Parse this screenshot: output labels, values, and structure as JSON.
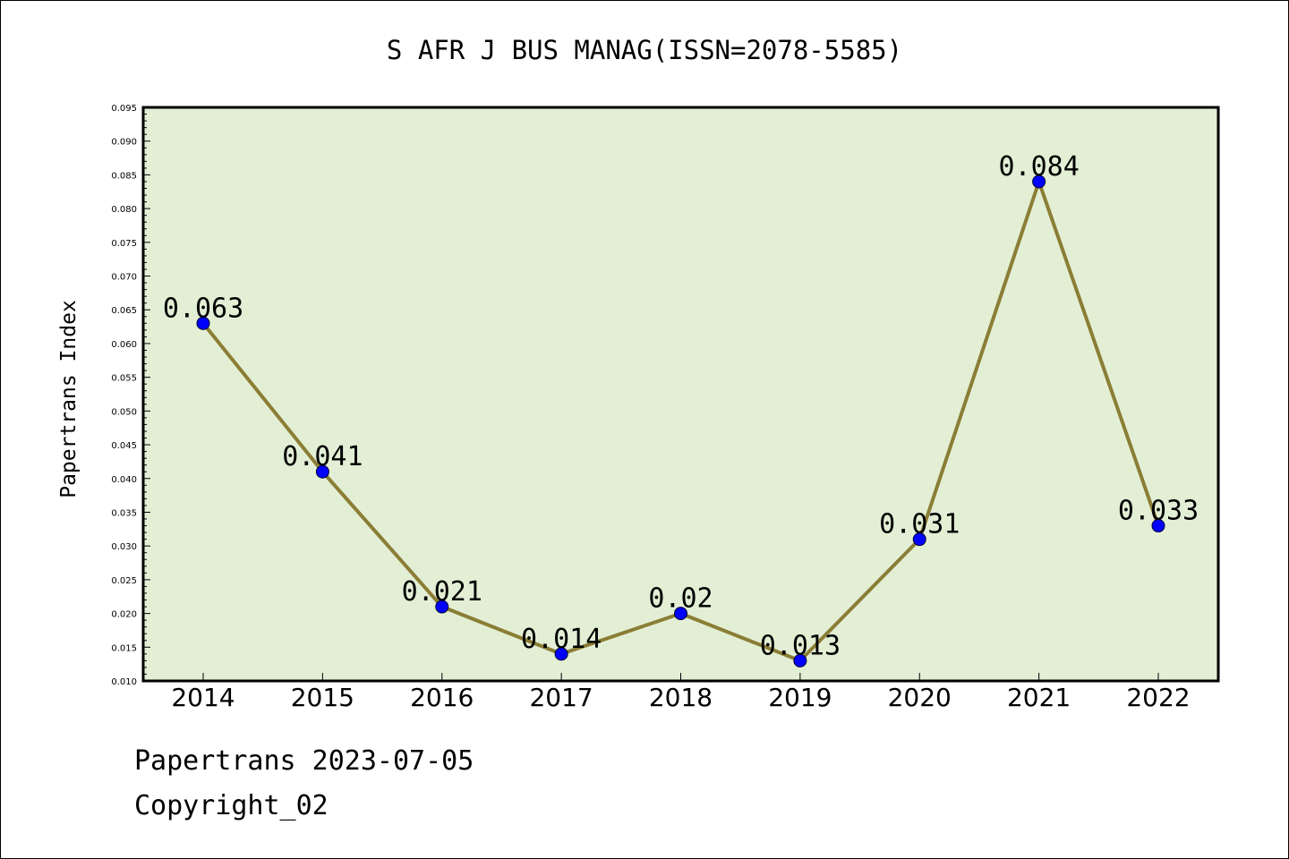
{
  "chart_data": {
    "type": "line",
    "title": "S AFR J BUS MANAG(ISSN=2078-5585)",
    "xlabel": "",
    "ylabel": "Papertrans Index",
    "categories": [
      "2014",
      "2015",
      "2016",
      "2017",
      "2018",
      "2019",
      "2020",
      "2021",
      "2022"
    ],
    "series": [
      {
        "values": [
          0.063,
          0.041,
          0.021,
          0.014,
          0.02,
          0.013,
          0.031,
          0.084,
          0.033
        ],
        "labels": [
          "0.063",
          "0.041",
          "0.021",
          "0.014",
          "0.02",
          "0.013",
          "0.031",
          "0.084",
          "0.033"
        ]
      }
    ],
    "ylim": [
      0.01,
      0.095
    ],
    "yticks": [
      "0.010",
      "0.015",
      "0.020",
      "0.025",
      "0.030",
      "0.035",
      "0.040",
      "0.045",
      "0.050",
      "0.055",
      "0.060",
      "0.065",
      "0.070",
      "0.075",
      "0.080",
      "0.085",
      "0.090",
      "0.095"
    ],
    "grid": false,
    "legend": "none",
    "colors": {
      "plot_background": "#e2efd5",
      "line": "#8b7d35",
      "marker": "#0000ff"
    }
  },
  "footer": {
    "line1": "Papertrans 2023-07-05",
    "line2": "Copyright_02"
  }
}
